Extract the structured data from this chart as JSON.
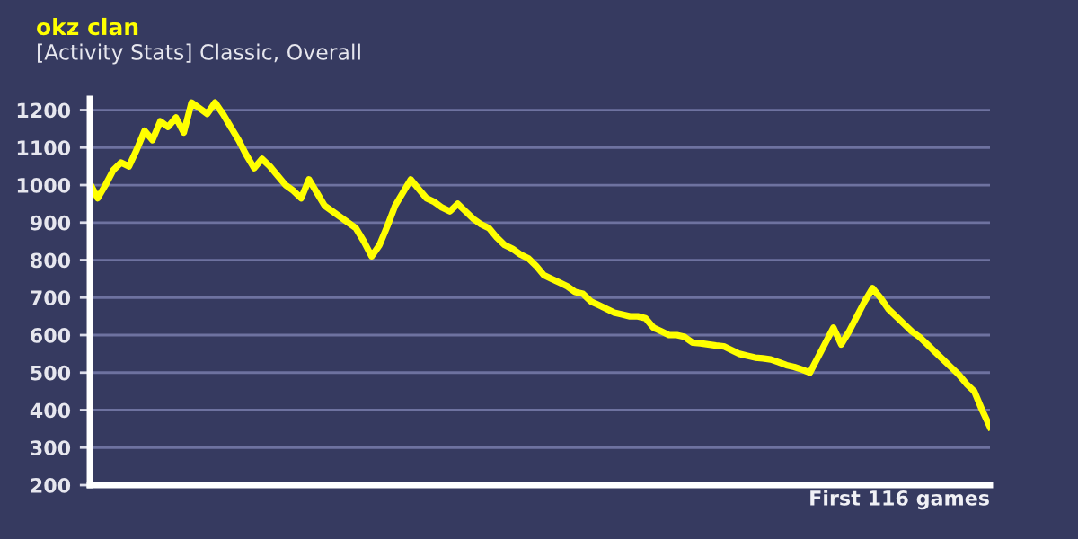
{
  "chart_data": {
    "type": "line",
    "title": "okz clan",
    "subtitle": "[Activity Stats] Classic, Overall",
    "xlabel": "First 116 games",
    "categories": [
      null,
      null,
      null,
      null,
      null,
      null,
      null,
      null,
      null,
      null,
      null,
      null,
      null,
      null,
      null,
      null,
      null,
      null,
      null,
      null,
      null,
      null,
      null,
      null,
      null,
      null,
      null,
      null,
      null,
      null,
      null,
      null,
      null,
      null,
      null,
      null,
      null,
      null,
      null,
      null,
      null,
      null,
      null,
      null,
      null,
      null,
      null,
      null,
      null,
      null,
      null,
      null,
      null,
      null,
      null,
      null,
      null,
      null,
      null,
      null,
      null,
      null,
      null,
      null,
      null,
      null,
      null,
      null,
      null,
      null,
      null,
      null,
      null,
      null,
      null,
      null,
      null,
      null,
      null,
      null,
      null,
      null,
      null,
      null,
      null,
      null,
      null,
      null,
      null,
      null,
      null,
      null,
      null,
      null,
      null,
      null,
      null,
      null,
      null,
      null,
      null,
      null,
      null,
      null,
      null,
      null,
      null,
      null,
      null,
      null,
      null,
      null,
      null,
      null,
      null,
      null
    ],
    "ylim": [
      200,
      1230
    ],
    "yticks": [
      200,
      300,
      400,
      500,
      600,
      700,
      800,
      900,
      1000,
      1100,
      1200
    ],
    "tick_labels": "y",
    "grid": "y",
    "marker": "none",
    "line_style": "solid",
    "series": [
      {
        "color": "#ffff00",
        "values": [
          1005,
          965,
          1000,
          1040,
          1060,
          1050,
          1095,
          1145,
          1120,
          1170,
          1155,
          1180,
          1140,
          1220,
          1205,
          1190,
          1220,
          1190,
          1155,
          1120,
          1080,
          1045,
          1070,
          1050,
          1025,
          1000,
          985,
          965,
          1015,
          980,
          945,
          930,
          915,
          900,
          885,
          850,
          810,
          840,
          890,
          945,
          980,
          1015,
          990,
          965,
          955,
          940,
          930,
          950,
          930,
          910,
          895,
          885,
          860,
          840,
          830,
          815,
          805,
          785,
          760,
          750,
          740,
          730,
          715,
          710,
          690,
          680,
          670,
          660,
          655,
          650,
          650,
          645,
          620,
          610,
          600,
          600,
          595,
          580,
          578,
          575,
          572,
          570,
          560,
          550,
          545,
          540,
          538,
          535,
          528,
          520,
          515,
          508,
          500,
          540,
          580,
          620,
          575,
          610,
          650,
          690,
          725,
          700,
          670,
          650,
          630,
          610,
          595,
          575,
          555,
          535,
          515,
          495,
          470,
          450,
          400,
          355
        ]
      }
    ]
  }
}
